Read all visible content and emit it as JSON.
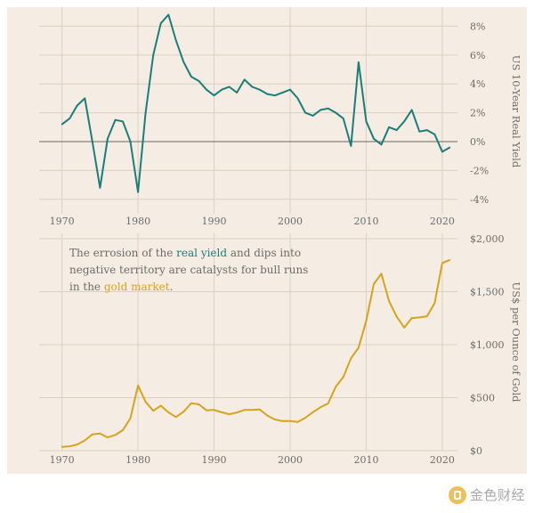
{
  "colors": {
    "background": "#ffffff",
    "panel": "#f5ede3",
    "grid": "#ddcfc0",
    "teal": "#1b7d7a",
    "gold": "#d6a31c",
    "text": "#6b6b6b",
    "zero_line": "#3a3a3a"
  },
  "annotation": {
    "line1_pre": "The errosion of the ",
    "line1_hl": "real yield",
    "line1_post": " and dips into",
    "line2": "negative territory are catalysts for bull runs",
    "line3_pre": "in the ",
    "line3_hl": "gold market",
    "line3_post": "."
  },
  "watermark": {
    "text": "金色财经",
    "icon": "jinse-logo-icon"
  },
  "chart_data": [
    {
      "type": "line",
      "title": "",
      "ylabel": "US 10-Year Real Yield",
      "xlabel": "",
      "xlim": [
        1967,
        2022
      ],
      "ylim": [
        -5,
        9.2
      ],
      "xticks": [
        "1970",
        "1980",
        "1990",
        "2000",
        "2010",
        "2020"
      ],
      "ytick_values": [
        8,
        6,
        4,
        2,
        0,
        -2,
        -4
      ],
      "ytick_labels": [
        "8%",
        "6%",
        "4%",
        "2%",
        "0%",
        "-2%",
        "-4%"
      ],
      "series": [
        {
          "name": "US 10-Year Real Yield",
          "x": [
            1970,
            1971,
            1972,
            1973,
            1974,
            1975,
            1976,
            1977,
            1978,
            1979,
            1980,
            1981,
            1982,
            1983,
            1984,
            1985,
            1986,
            1987,
            1988,
            1989,
            1990,
            1991,
            1992,
            1993,
            1994,
            1995,
            1996,
            1997,
            1998,
            1999,
            2000,
            2001,
            2002,
            2003,
            2004,
            2005,
            2006,
            2007,
            2008,
            2009,
            2010,
            2011,
            2012,
            2013,
            2014,
            2015,
            2016,
            2017,
            2018,
            2019,
            2020,
            2021
          ],
          "values": [
            1.2,
            1.6,
            2.5,
            3.0,
            0.0,
            -3.2,
            0.2,
            1.5,
            1.4,
            0.0,
            -3.5,
            2.0,
            6.0,
            8.2,
            8.8,
            7.0,
            5.5,
            4.5,
            4.2,
            3.6,
            3.2,
            3.6,
            3.8,
            3.4,
            4.3,
            3.8,
            3.6,
            3.3,
            3.2,
            3.4,
            3.6,
            3.0,
            2.0,
            1.8,
            2.2,
            2.3,
            2.0,
            1.6,
            -0.3,
            5.5,
            1.4,
            0.2,
            -0.2,
            1.0,
            0.8,
            1.4,
            2.2,
            0.7,
            0.8,
            0.5,
            -0.7,
            -0.4
          ]
        }
      ]
    },
    {
      "type": "line",
      "title": "",
      "ylabel": "US$ per Ounce of Gold",
      "xlabel": "",
      "xlim": [
        1967,
        2022
      ],
      "ylim": [
        0,
        2050
      ],
      "xticks": [
        "1970",
        "1980",
        "1990",
        "2000",
        "2010",
        "2020"
      ],
      "ytick_values": [
        2000,
        1500,
        1000,
        500,
        0
      ],
      "ytick_labels": [
        "$2,000",
        "$1,500",
        "$1,000",
        "$500",
        "$0"
      ],
      "series": [
        {
          "name": "Gold price (US$ per ounce)",
          "x": [
            1970,
            1971,
            1972,
            1973,
            1974,
            1975,
            1976,
            1977,
            1978,
            1979,
            1980,
            1981,
            1982,
            1983,
            1984,
            1985,
            1986,
            1987,
            1988,
            1989,
            1990,
            1991,
            1992,
            1993,
            1994,
            1995,
            1996,
            1997,
            1998,
            1999,
            2000,
            2001,
            2002,
            2003,
            2004,
            2005,
            2006,
            2007,
            2008,
            2009,
            2010,
            2011,
            2012,
            2013,
            2014,
            2015,
            2016,
            2017,
            2018,
            2019,
            2020,
            2021
          ],
          "values": [
            36,
            41,
            58,
            97,
            154,
            161,
            125,
            148,
            193,
            306,
            615,
            460,
            376,
            424,
            361,
            317,
            368,
            447,
            437,
            381,
            384,
            362,
            344,
            360,
            384,
            384,
            388,
            331,
            294,
            279,
            279,
            271,
            310,
            363,
            410,
            445,
            604,
            695,
            872,
            972,
            1225,
            1572,
            1669,
            1411,
            1266,
            1160,
            1251,
            1257,
            1268,
            1393,
            1770,
            1800
          ]
        }
      ]
    }
  ]
}
